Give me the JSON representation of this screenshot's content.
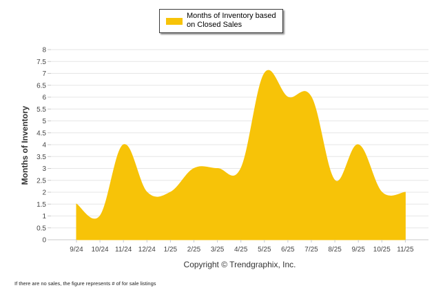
{
  "chart_data": {
    "type": "area",
    "categories": [
      "9/24",
      "10/24",
      "11/24",
      "12/24",
      "1/25",
      "2/25",
      "3/25",
      "4/25",
      "5/25",
      "6/25",
      "7/25",
      "8/25",
      "9/25",
      "10/25",
      "11/25"
    ],
    "series": [
      {
        "name": "Months of Inventory based on Closed Sales",
        "color": "#f7c308",
        "values": [
          1.5,
          1.0,
          4.0,
          2.0,
          2.0,
          3.0,
          3.0,
          3.0,
          7.0,
          6.0,
          6.0,
          2.5,
          4.0,
          2.0,
          2.0
        ]
      }
    ],
    "yticks": [
      "0",
      "0.5",
      "1",
      "1.5",
      "2",
      "2.5",
      "3",
      "3.5",
      "4",
      "4.5",
      "5",
      "5.5",
      "6",
      "6.5",
      "7",
      "7.5",
      "8"
    ],
    "ylim": [
      0,
      8
    ],
    "ylabel": "Months of Inventory",
    "xlabel": "",
    "grid": true,
    "legend_position": "top-center"
  },
  "legend": {
    "label": "Months of Inventory based on Closed Sales",
    "color": "#f7c308"
  },
  "copyright": "Copyright © Trendgraphix, Inc.",
  "footnote": "If there are no sales, the figure represents # of for sale listings"
}
